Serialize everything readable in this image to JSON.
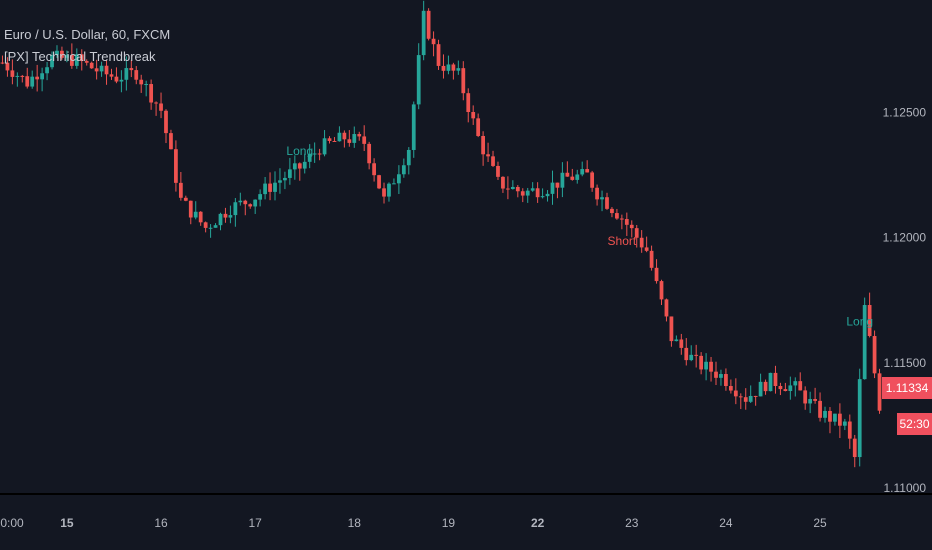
{
  "header": {
    "title": "Euro / U.S. Dollar, 60, FXCM",
    "indicator": "[PX] Technical Trendbreak"
  },
  "colors": {
    "background": "#131722",
    "up": "#26a69a",
    "down": "#ef5350",
    "signal_long": "#26a69a",
    "signal_short": "#ef5350",
    "axis_text": "#b2b5be",
    "axis_line": "#000000"
  },
  "price_axis": {
    "ticks": [
      "1.12500",
      "1.12000",
      "1.11500",
      "1.11000"
    ],
    "last_price": "1.11334",
    "countdown": "52:30"
  },
  "time_axis": {
    "ticks": [
      "0:00",
      "15",
      "16",
      "17",
      "18",
      "19",
      "22",
      "23",
      "24",
      "25"
    ]
  },
  "chart_data": {
    "type": "candlestick",
    "instrument": "EUR/USD",
    "timeframe": "60",
    "ylim": [
      1.1098,
      1.1295
    ],
    "y_ticks": [
      1.125,
      1.12,
      1.115,
      1.11
    ],
    "x_ticks": [
      "0:00",
      "15",
      "16",
      "17",
      "18",
      "19",
      "22",
      "23",
      "24",
      "25"
    ],
    "close_path": [
      [
        0,
        1.127
      ],
      [
        5,
        1.1262
      ],
      [
        10,
        1.1272
      ],
      [
        15,
        1.1271
      ],
      [
        20,
        1.1266
      ],
      [
        23,
        1.1264
      ],
      [
        27,
        1.1266
      ],
      [
        32,
        1.1251
      ],
      [
        36,
        1.1215
      ],
      [
        41,
        1.1204
      ],
      [
        46,
        1.1212
      ],
      [
        50,
        1.1215
      ],
      [
        55,
        1.1222
      ],
      [
        60,
        1.1228
      ],
      [
        64,
        1.1236
      ],
      [
        69,
        1.124
      ],
      [
        73,
        1.1238
      ],
      [
        77,
        1.1215
      ],
      [
        82,
        1.1236
      ],
      [
        85,
        1.1288
      ],
      [
        88,
        1.127
      ],
      [
        92,
        1.1265
      ],
      [
        96,
        1.124
      ],
      [
        100,
        1.1222
      ],
      [
        105,
        1.1218
      ],
      [
        110,
        1.122
      ],
      [
        114,
        1.1224
      ],
      [
        118,
        1.1225
      ],
      [
        120,
        1.1218
      ],
      [
        125,
        1.1208
      ],
      [
        130,
        1.1195
      ],
      [
        135,
        1.116
      ],
      [
        140,
        1.115
      ],
      [
        145,
        1.1145
      ],
      [
        150,
        1.1136
      ],
      [
        155,
        1.1143
      ],
      [
        160,
        1.114
      ],
      [
        165,
        1.113
      ],
      [
        170,
        1.1125
      ],
      [
        172,
        1.1112
      ],
      [
        174,
        1.1172
      ],
      [
        177,
        1.1133
      ]
    ],
    "signals": [
      {
        "label": "Long",
        "x": 60,
        "price": 1.1233
      },
      {
        "label": "Short",
        "x": 125,
        "price": 1.1197
      },
      {
        "label": "Long",
        "x": 173,
        "price": 1.1165
      }
    ]
  }
}
